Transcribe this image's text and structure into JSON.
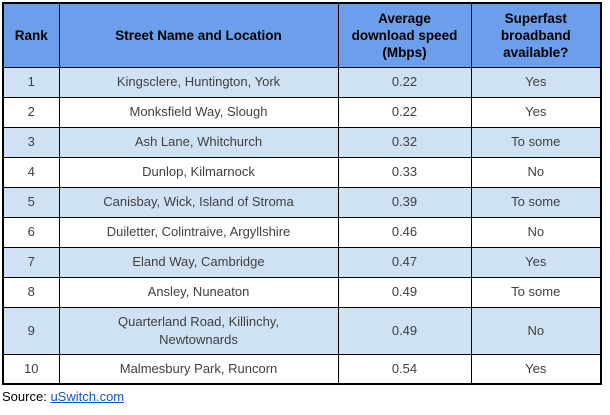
{
  "colors": {
    "header_bg": "#6D9EEB",
    "row_alt_bg": "#CFE2F3",
    "row_bg": "#FFFFFF",
    "border": "#000000",
    "link": "#1155CC",
    "header_text": "#000000",
    "body_text": "#3F3F3F"
  },
  "table": {
    "columns": {
      "rank": "Rank",
      "street": "Street Name and Location",
      "speed": "Average\ndownload speed\n(Mbps)",
      "superfast": "Superfast\nbroadband\navailable?"
    },
    "rows": [
      {
        "rank": "1",
        "street": "Kingsclere, Huntington, York",
        "speed": "0.22",
        "superfast": "Yes"
      },
      {
        "rank": "2",
        "street": "Monksfield Way, Slough",
        "speed": "0.22",
        "superfast": "Yes"
      },
      {
        "rank": "3",
        "street": "Ash Lane, Whitchurch",
        "speed": "0.32",
        "superfast": "To some"
      },
      {
        "rank": "4",
        "street": "Dunlop, Kilmarnock",
        "speed": "0.33",
        "superfast": "No"
      },
      {
        "rank": "5",
        "street": "Canisbay, Wick, Island of Stroma",
        "speed": "0.39",
        "superfast": "To some"
      },
      {
        "rank": "6",
        "street": "Duiletter, Colintraive, Argyllshire",
        "speed": "0.46",
        "superfast": "No"
      },
      {
        "rank": "7",
        "street": "Eland Way, Cambridge",
        "speed": "0.47",
        "superfast": "Yes"
      },
      {
        "rank": "8",
        "street": "Ansley, Nuneaton",
        "speed": "0.49",
        "superfast": "To some"
      },
      {
        "rank": "9",
        "street": "Quarterland Road, Killinchy,\nNewtownards",
        "speed": "0.49",
        "superfast": "No"
      },
      {
        "rank": "10",
        "street": "Malmesbury Park, Runcorn",
        "speed": "0.54",
        "superfast": "Yes"
      }
    ]
  },
  "source": {
    "label": "Source:",
    "link_text": "uSwitch.com"
  }
}
